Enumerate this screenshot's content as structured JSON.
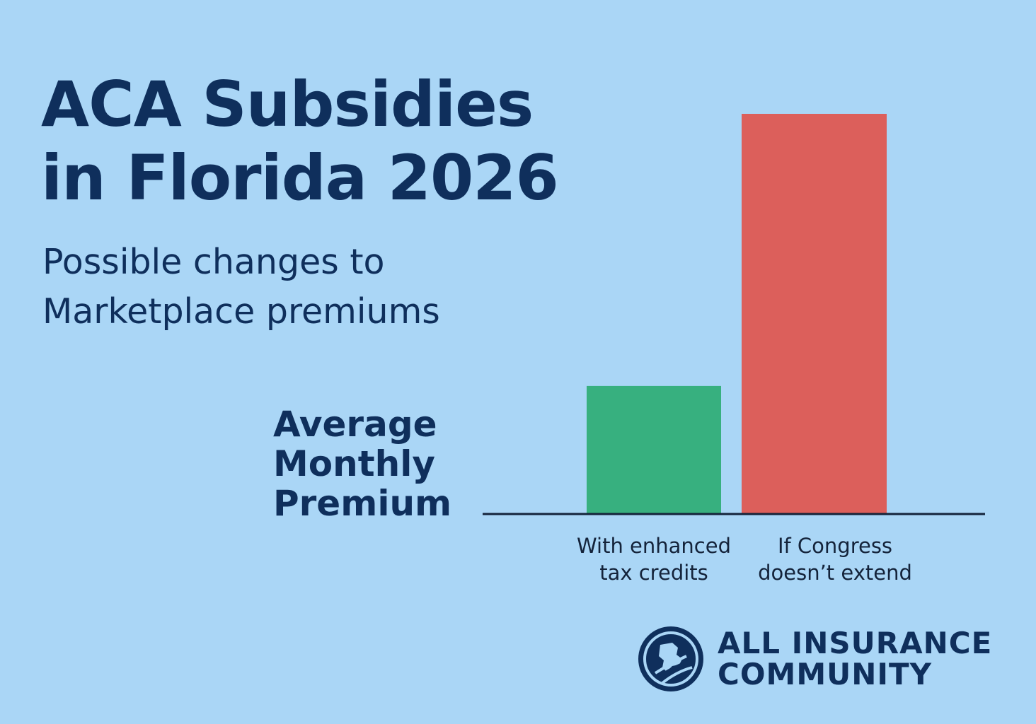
{
  "header": {
    "title_lines": [
      "ACA Subsidies",
      "in Florida 2026"
    ],
    "subtitle_lines": [
      "Possible changes to",
      "Marketplace premiums"
    ]
  },
  "chart_data": {
    "type": "bar",
    "ylabel_lines": [
      "Average",
      "Monthly",
      "Premium"
    ],
    "categories": [
      [
        "With enhanced",
        "tax credits"
      ],
      [
        "If Congress",
        "doesn’t extend"
      ]
    ],
    "values": [
      32,
      100
    ],
    "ylim": [
      0,
      100
    ],
    "grid": false,
    "legend": "none",
    "colors": [
      "#37b07f",
      "#dc5f5b"
    ]
  },
  "brand": {
    "name_lines": [
      "ALL INSURANCE",
      "COMMUNITY"
    ],
    "logo_icon": "all-insurance-community-logo-icon",
    "color": "#0f2f5c"
  }
}
